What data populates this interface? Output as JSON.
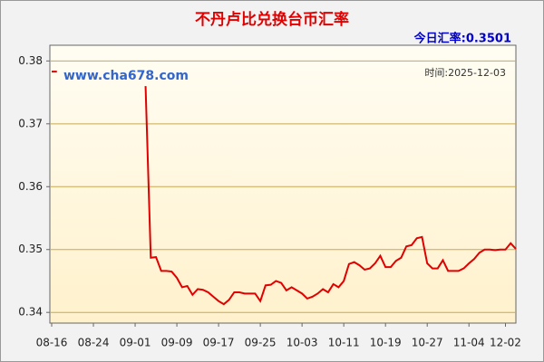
{
  "chart_data": {
    "type": "line",
    "title": "不丹卢比兑换台币汇率",
    "subtitle": "今日汇率:0.3501",
    "annotations": [
      "www.cha678.com",
      "时间:2025-12-03"
    ],
    "categories": [
      "08-16",
      null,
      null,
      null,
      null,
      null,
      null,
      null,
      "08-24",
      null,
      null,
      null,
      null,
      null,
      null,
      null,
      "09-01",
      null,
      null,
      null,
      null,
      null,
      null,
      null,
      "09-09",
      null,
      null,
      null,
      null,
      null,
      null,
      null,
      "09-17",
      null,
      null,
      null,
      null,
      null,
      null,
      null,
      "09-25",
      null,
      null,
      null,
      null,
      null,
      null,
      null,
      "10-03",
      null,
      null,
      null,
      null,
      null,
      null,
      null,
      "10-11",
      null,
      null,
      null,
      null,
      null,
      null,
      null,
      "10-19",
      null,
      null,
      null,
      null,
      null,
      null,
      null,
      "10-27",
      null,
      null,
      null,
      null,
      null,
      null,
      null,
      "11-04",
      null,
      null,
      null,
      null,
      null,
      null,
      "12-02",
      null,
      null
    ],
    "series": [
      {
        "name": "汇率",
        "color": "#e00000",
        "values": [
          0.3783,
          0.3783,
          null,
          null,
          null,
          null,
          null,
          null,
          null,
          null,
          null,
          null,
          null,
          null,
          null,
          null,
          null,
          null,
          0.376,
          0.3487,
          0.3488,
          0.3466,
          0.3466,
          0.3465,
          0.3455,
          0.344,
          0.3442,
          0.3428,
          0.3437,
          0.3436,
          0.3432,
          0.3425,
          0.3418,
          0.3413,
          0.342,
          0.3432,
          0.3432,
          0.343,
          0.343,
          0.343,
          0.3418,
          0.3443,
          0.3444,
          0.345,
          0.3447,
          0.3435,
          0.344,
          0.3435,
          0.343,
          0.3422,
          0.3425,
          0.343,
          0.3437,
          0.3432,
          0.3445,
          0.344,
          0.345,
          0.3477,
          0.348,
          0.3475,
          0.3468,
          0.347,
          0.3478,
          0.349,
          0.3472,
          0.3472,
          0.3482,
          0.3487,
          0.3505,
          0.3507,
          0.3518,
          0.352,
          0.3478,
          0.347,
          0.347,
          0.3483,
          0.3466,
          0.3466,
          0.3466,
          0.347,
          0.3478,
          0.3485,
          0.3495,
          0.35,
          0.35,
          0.3499,
          0.35,
          0.35,
          0.351,
          0.3501
        ]
      }
    ],
    "ylim": [
      0.3383,
      0.3825
    ],
    "yticks": [
      0.34,
      0.35,
      0.36,
      0.37,
      0.38
    ],
    "grid": true
  }
}
